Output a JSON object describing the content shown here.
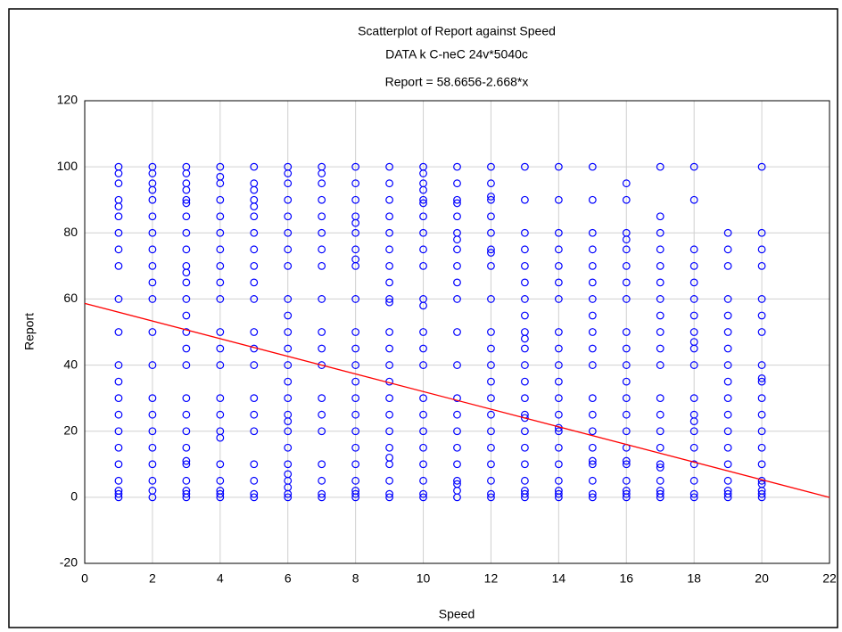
{
  "chart_data": {
    "type": "scatter",
    "title": "Scatterplot of Report against Speed",
    "subtitle": "DATA k C-neC 24v*5040c",
    "fit_label": "Report = 58.6656-2.668*x",
    "xlabel": "Speed",
    "ylabel": "Report",
    "xlim": [
      0,
      22
    ],
    "xticks": [
      0,
      2,
      4,
      6,
      8,
      10,
      12,
      14,
      16,
      18,
      20,
      22
    ],
    "ylim": [
      -20,
      120
    ],
    "yticks": [
      -20,
      0,
      20,
      40,
      60,
      80,
      100,
      120
    ],
    "grid": true,
    "color": "#0000ff",
    "trendline": {
      "intercept": 58.6656,
      "slope": -2.668,
      "color": "#ff0000"
    },
    "points": [
      [
        1,
        0
      ],
      [
        1,
        1
      ],
      [
        1,
        2
      ],
      [
        1,
        5
      ],
      [
        1,
        10
      ],
      [
        1,
        15
      ],
      [
        1,
        20
      ],
      [
        1,
        25
      ],
      [
        1,
        30
      ],
      [
        1,
        35
      ],
      [
        1,
        40
      ],
      [
        1,
        50
      ],
      [
        1,
        60
      ],
      [
        1,
        70
      ],
      [
        1,
        75
      ],
      [
        1,
        80
      ],
      [
        1,
        85
      ],
      [
        1,
        88
      ],
      [
        1,
        90
      ],
      [
        1,
        95
      ],
      [
        1,
        98
      ],
      [
        1,
        100
      ],
      [
        2,
        0
      ],
      [
        2,
        2
      ],
      [
        2,
        5
      ],
      [
        2,
        10
      ],
      [
        2,
        15
      ],
      [
        2,
        20
      ],
      [
        2,
        25
      ],
      [
        2,
        30
      ],
      [
        2,
        40
      ],
      [
        2,
        50
      ],
      [
        2,
        60
      ],
      [
        2,
        65
      ],
      [
        2,
        70
      ],
      [
        2,
        75
      ],
      [
        2,
        80
      ],
      [
        2,
        85
      ],
      [
        2,
        90
      ],
      [
        2,
        93
      ],
      [
        2,
        95
      ],
      [
        2,
        98
      ],
      [
        2,
        100
      ],
      [
        3,
        0
      ],
      [
        3,
        1
      ],
      [
        3,
        2
      ],
      [
        3,
        5
      ],
      [
        3,
        10
      ],
      [
        3,
        11
      ],
      [
        3,
        15
      ],
      [
        3,
        20
      ],
      [
        3,
        25
      ],
      [
        3,
        30
      ],
      [
        3,
        40
      ],
      [
        3,
        45
      ],
      [
        3,
        50
      ],
      [
        3,
        55
      ],
      [
        3,
        60
      ],
      [
        3,
        65
      ],
      [
        3,
        68
      ],
      [
        3,
        70
      ],
      [
        3,
        75
      ],
      [
        3,
        80
      ],
      [
        3,
        85
      ],
      [
        3,
        89
      ],
      [
        3,
        90
      ],
      [
        3,
        93
      ],
      [
        3,
        95
      ],
      [
        3,
        98
      ],
      [
        3,
        100
      ],
      [
        4,
        0
      ],
      [
        4,
        1
      ],
      [
        4,
        2
      ],
      [
        4,
        5
      ],
      [
        4,
        10
      ],
      [
        4,
        18
      ],
      [
        4,
        20
      ],
      [
        4,
        25
      ],
      [
        4,
        30
      ],
      [
        4,
        40
      ],
      [
        4,
        45
      ],
      [
        4,
        50
      ],
      [
        4,
        60
      ],
      [
        4,
        65
      ],
      [
        4,
        70
      ],
      [
        4,
        75
      ],
      [
        4,
        80
      ],
      [
        4,
        85
      ],
      [
        4,
        90
      ],
      [
        4,
        95
      ],
      [
        4,
        97
      ],
      [
        4,
        100
      ],
      [
        5,
        0
      ],
      [
        5,
        1
      ],
      [
        5,
        5
      ],
      [
        5,
        10
      ],
      [
        5,
        20
      ],
      [
        5,
        25
      ],
      [
        5,
        30
      ],
      [
        5,
        40
      ],
      [
        5,
        45
      ],
      [
        5,
        50
      ],
      [
        5,
        60
      ],
      [
        5,
        65
      ],
      [
        5,
        70
      ],
      [
        5,
        75
      ],
      [
        5,
        80
      ],
      [
        5,
        85
      ],
      [
        5,
        88
      ],
      [
        5,
        90
      ],
      [
        5,
        93
      ],
      [
        5,
        95
      ],
      [
        5,
        100
      ],
      [
        6,
        0
      ],
      [
        6,
        1
      ],
      [
        6,
        3
      ],
      [
        6,
        5
      ],
      [
        6,
        7
      ],
      [
        6,
        10
      ],
      [
        6,
        15
      ],
      [
        6,
        20
      ],
      [
        6,
        23
      ],
      [
        6,
        25
      ],
      [
        6,
        30
      ],
      [
        6,
        35
      ],
      [
        6,
        40
      ],
      [
        6,
        45
      ],
      [
        6,
        50
      ],
      [
        6,
        55
      ],
      [
        6,
        60
      ],
      [
        6,
        70
      ],
      [
        6,
        75
      ],
      [
        6,
        80
      ],
      [
        6,
        85
      ],
      [
        6,
        90
      ],
      [
        6,
        95
      ],
      [
        6,
        98
      ],
      [
        6,
        100
      ],
      [
        7,
        0
      ],
      [
        7,
        1
      ],
      [
        7,
        5
      ],
      [
        7,
        10
      ],
      [
        7,
        20
      ],
      [
        7,
        25
      ],
      [
        7,
        30
      ],
      [
        7,
        40
      ],
      [
        7,
        45
      ],
      [
        7,
        50
      ],
      [
        7,
        60
      ],
      [
        7,
        70
      ],
      [
        7,
        75
      ],
      [
        7,
        80
      ],
      [
        7,
        85
      ],
      [
        7,
        90
      ],
      [
        7,
        95
      ],
      [
        7,
        98
      ],
      [
        7,
        100
      ],
      [
        8,
        0
      ],
      [
        8,
        1
      ],
      [
        8,
        2
      ],
      [
        8,
        5
      ],
      [
        8,
        10
      ],
      [
        8,
        15
      ],
      [
        8,
        20
      ],
      [
        8,
        25
      ],
      [
        8,
        30
      ],
      [
        8,
        35
      ],
      [
        8,
        40
      ],
      [
        8,
        45
      ],
      [
        8,
        50
      ],
      [
        8,
        60
      ],
      [
        8,
        70
      ],
      [
        8,
        72
      ],
      [
        8,
        75
      ],
      [
        8,
        80
      ],
      [
        8,
        83
      ],
      [
        8,
        85
      ],
      [
        8,
        90
      ],
      [
        8,
        95
      ],
      [
        8,
        100
      ],
      [
        9,
        0
      ],
      [
        9,
        1
      ],
      [
        9,
        5
      ],
      [
        9,
        10
      ],
      [
        9,
        12
      ],
      [
        9,
        15
      ],
      [
        9,
        20
      ],
      [
        9,
        25
      ],
      [
        9,
        30
      ],
      [
        9,
        35
      ],
      [
        9,
        40
      ],
      [
        9,
        45
      ],
      [
        9,
        50
      ],
      [
        9,
        59
      ],
      [
        9,
        60
      ],
      [
        9,
        65
      ],
      [
        9,
        70
      ],
      [
        9,
        75
      ],
      [
        9,
        80
      ],
      [
        9,
        85
      ],
      [
        9,
        90
      ],
      [
        9,
        95
      ],
      [
        9,
        100
      ],
      [
        10,
        0
      ],
      [
        10,
        1
      ],
      [
        10,
        5
      ],
      [
        10,
        10
      ],
      [
        10,
        15
      ],
      [
        10,
        20
      ],
      [
        10,
        25
      ],
      [
        10,
        30
      ],
      [
        10,
        40
      ],
      [
        10,
        45
      ],
      [
        10,
        50
      ],
      [
        10,
        58
      ],
      [
        10,
        60
      ],
      [
        10,
        70
      ],
      [
        10,
        75
      ],
      [
        10,
        80
      ],
      [
        10,
        85
      ],
      [
        10,
        89
      ],
      [
        10,
        90
      ],
      [
        10,
        93
      ],
      [
        10,
        95
      ],
      [
        10,
        98
      ],
      [
        10,
        100
      ],
      [
        11,
        0
      ],
      [
        11,
        2
      ],
      [
        11,
        4
      ],
      [
        11,
        5
      ],
      [
        11,
        10
      ],
      [
        11,
        15
      ],
      [
        11,
        20
      ],
      [
        11,
        25
      ],
      [
        11,
        30
      ],
      [
        11,
        40
      ],
      [
        11,
        50
      ],
      [
        11,
        60
      ],
      [
        11,
        65
      ],
      [
        11,
        70
      ],
      [
        11,
        75
      ],
      [
        11,
        78
      ],
      [
        11,
        80
      ],
      [
        11,
        85
      ],
      [
        11,
        89
      ],
      [
        11,
        90
      ],
      [
        11,
        95
      ],
      [
        11,
        100
      ],
      [
        12,
        0
      ],
      [
        12,
        1
      ],
      [
        12,
        5
      ],
      [
        12,
        10
      ],
      [
        12,
        15
      ],
      [
        12,
        20
      ],
      [
        12,
        25
      ],
      [
        12,
        30
      ],
      [
        12,
        35
      ],
      [
        12,
        40
      ],
      [
        12,
        45
      ],
      [
        12,
        50
      ],
      [
        12,
        60
      ],
      [
        12,
        70
      ],
      [
        12,
        74
      ],
      [
        12,
        75
      ],
      [
        12,
        80
      ],
      [
        12,
        85
      ],
      [
        12,
        90
      ],
      [
        12,
        91
      ],
      [
        12,
        95
      ],
      [
        12,
        100
      ],
      [
        13,
        0
      ],
      [
        13,
        1
      ],
      [
        13,
        2
      ],
      [
        13,
        5
      ],
      [
        13,
        10
      ],
      [
        13,
        15
      ],
      [
        13,
        20
      ],
      [
        13,
        24
      ],
      [
        13,
        25
      ],
      [
        13,
        30
      ],
      [
        13,
        35
      ],
      [
        13,
        40
      ],
      [
        13,
        45
      ],
      [
        13,
        48
      ],
      [
        13,
        50
      ],
      [
        13,
        55
      ],
      [
        13,
        60
      ],
      [
        13,
        65
      ],
      [
        13,
        70
      ],
      [
        13,
        75
      ],
      [
        13,
        80
      ],
      [
        13,
        90
      ],
      [
        13,
        100
      ],
      [
        14,
        0
      ],
      [
        14,
        1
      ],
      [
        14,
        2
      ],
      [
        14,
        5
      ],
      [
        14,
        10
      ],
      [
        14,
        15
      ],
      [
        14,
        20
      ],
      [
        14,
        21
      ],
      [
        14,
        25
      ],
      [
        14,
        30
      ],
      [
        14,
        35
      ],
      [
        14,
        40
      ],
      [
        14,
        45
      ],
      [
        14,
        50
      ],
      [
        14,
        60
      ],
      [
        14,
        65
      ],
      [
        14,
        70
      ],
      [
        14,
        75
      ],
      [
        14,
        80
      ],
      [
        14,
        90
      ],
      [
        14,
        100
      ],
      [
        15,
        0
      ],
      [
        15,
        1
      ],
      [
        15,
        5
      ],
      [
        15,
        10
      ],
      [
        15,
        11
      ],
      [
        15,
        15
      ],
      [
        15,
        20
      ],
      [
        15,
        25
      ],
      [
        15,
        30
      ],
      [
        15,
        40
      ],
      [
        15,
        45
      ],
      [
        15,
        50
      ],
      [
        15,
        55
      ],
      [
        15,
        60
      ],
      [
        15,
        65
      ],
      [
        15,
        70
      ],
      [
        15,
        75
      ],
      [
        15,
        80
      ],
      [
        15,
        90
      ],
      [
        15,
        100
      ],
      [
        16,
        0
      ],
      [
        16,
        1
      ],
      [
        16,
        2
      ],
      [
        16,
        5
      ],
      [
        16,
        10
      ],
      [
        16,
        11
      ],
      [
        16,
        15
      ],
      [
        16,
        20
      ],
      [
        16,
        25
      ],
      [
        16,
        30
      ],
      [
        16,
        35
      ],
      [
        16,
        40
      ],
      [
        16,
        45
      ],
      [
        16,
        50
      ],
      [
        16,
        60
      ],
      [
        16,
        65
      ],
      [
        16,
        70
      ],
      [
        16,
        75
      ],
      [
        16,
        78
      ],
      [
        16,
        80
      ],
      [
        16,
        90
      ],
      [
        16,
        95
      ],
      [
        17,
        0
      ],
      [
        17,
        1
      ],
      [
        17,
        2
      ],
      [
        17,
        5
      ],
      [
        17,
        9
      ],
      [
        17,
        10
      ],
      [
        17,
        15
      ],
      [
        17,
        20
      ],
      [
        17,
        25
      ],
      [
        17,
        30
      ],
      [
        17,
        40
      ],
      [
        17,
        45
      ],
      [
        17,
        50
      ],
      [
        17,
        55
      ],
      [
        17,
        60
      ],
      [
        17,
        65
      ],
      [
        17,
        70
      ],
      [
        17,
        75
      ],
      [
        17,
        80
      ],
      [
        17,
        85
      ],
      [
        17,
        100
      ],
      [
        18,
        0
      ],
      [
        18,
        1
      ],
      [
        18,
        5
      ],
      [
        18,
        10
      ],
      [
        18,
        15
      ],
      [
        18,
        20
      ],
      [
        18,
        23
      ],
      [
        18,
        25
      ],
      [
        18,
        30
      ],
      [
        18,
        40
      ],
      [
        18,
        45
      ],
      [
        18,
        47
      ],
      [
        18,
        50
      ],
      [
        18,
        55
      ],
      [
        18,
        60
      ],
      [
        18,
        65
      ],
      [
        18,
        70
      ],
      [
        18,
        75
      ],
      [
        18,
        90
      ],
      [
        18,
        100
      ],
      [
        19,
        0
      ],
      [
        19,
        1
      ],
      [
        19,
        2
      ],
      [
        19,
        5
      ],
      [
        19,
        10
      ],
      [
        19,
        15
      ],
      [
        19,
        20
      ],
      [
        19,
        25
      ],
      [
        19,
        30
      ],
      [
        19,
        35
      ],
      [
        19,
        40
      ],
      [
        19,
        45
      ],
      [
        19,
        50
      ],
      [
        19,
        55
      ],
      [
        19,
        60
      ],
      [
        19,
        70
      ],
      [
        19,
        75
      ],
      [
        19,
        80
      ],
      [
        20,
        0
      ],
      [
        20,
        1
      ],
      [
        20,
        2
      ],
      [
        20,
        4
      ],
      [
        20,
        5
      ],
      [
        20,
        10
      ],
      [
        20,
        15
      ],
      [
        20,
        20
      ],
      [
        20,
        25
      ],
      [
        20,
        30
      ],
      [
        20,
        35
      ],
      [
        20,
        36
      ],
      [
        20,
        40
      ],
      [
        20,
        50
      ],
      [
        20,
        55
      ],
      [
        20,
        60
      ],
      [
        20,
        70
      ],
      [
        20,
        75
      ],
      [
        20,
        80
      ],
      [
        20,
        100
      ]
    ]
  }
}
